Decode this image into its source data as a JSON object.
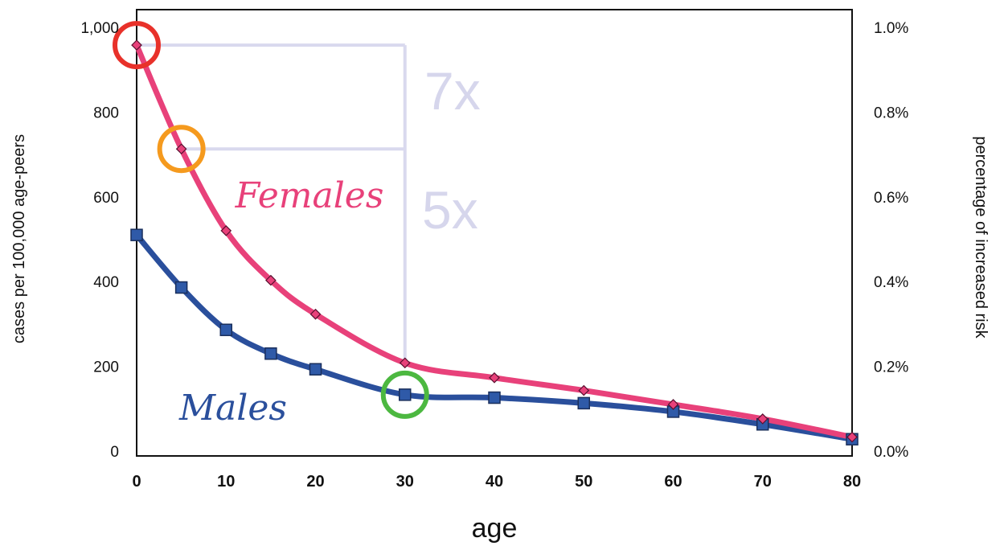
{
  "chart_data": {
    "type": "line",
    "xlabel": "age",
    "ylabel": "cases per 100,000 age-peers",
    "y2label": "percentage of increased risk",
    "xlim": [
      0,
      80
    ],
    "ylim": [
      0,
      1000
    ],
    "y2lim": [
      0,
      1.0
    ],
    "x_ticks": [
      "0",
      "10",
      "20",
      "30",
      "40",
      "50",
      "60",
      "70",
      "80"
    ],
    "y_ticks": [
      "0",
      "200",
      "400",
      "600",
      "800",
      "1,000"
    ],
    "y2_ticks": [
      "0.0%",
      "0.2%",
      "0.4%",
      "0.6%",
      "0.8%",
      "1.0%"
    ],
    "grid": false,
    "series": [
      {
        "name": "Females",
        "color": "#e8417a",
        "marker": "diamond",
        "x": [
          0,
          5,
          10,
          15,
          20,
          30,
          40,
          50,
          60,
          70,
          80
        ],
        "values": [
          960,
          715,
          522,
          405,
          325,
          210,
          175,
          145,
          112,
          78,
          35
        ]
      },
      {
        "name": "Males",
        "color": "#2a4f9c",
        "marker": "square",
        "x": [
          0,
          5,
          10,
          15,
          20,
          30,
          40,
          50,
          60,
          70,
          80
        ],
        "values": [
          512,
          388,
          288,
          232,
          195,
          135,
          128,
          115,
          95,
          65,
          30
        ]
      }
    ],
    "annotations": [
      {
        "text": "7x",
        "color": "#d6d6ec"
      },
      {
        "text": "5x",
        "color": "#d6d6ec"
      }
    ],
    "highlights": [
      {
        "series": "Females",
        "x": 0,
        "color": "#e8312a"
      },
      {
        "series": "Females",
        "x": 5,
        "color": "#f59a1e"
      },
      {
        "series": "Males",
        "x": 30,
        "color": "#4cb840"
      }
    ]
  }
}
